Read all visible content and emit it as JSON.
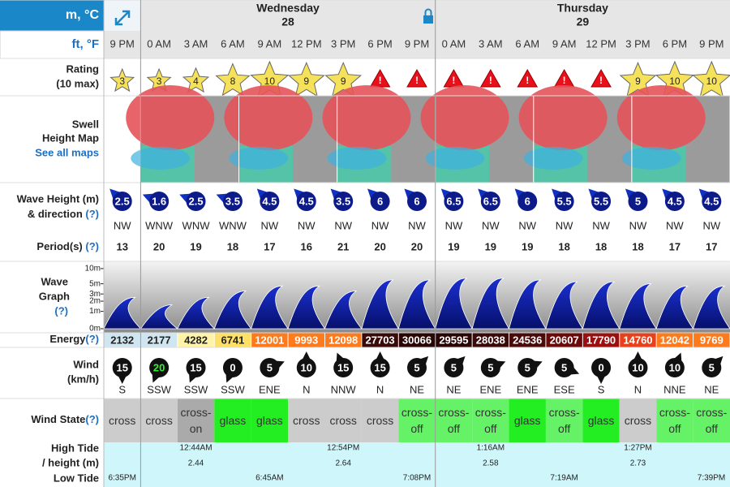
{
  "units": {
    "metric": "m, °C",
    "imperial": "ft, °F"
  },
  "days": [
    {
      "name": "Wednesday",
      "date": "28"
    },
    {
      "name": "Thursday",
      "date": "29"
    }
  ],
  "times": [
    "9 PM",
    "0 AM",
    "3 AM",
    "6 AM",
    "9 AM",
    "12 PM",
    "3 PM",
    "6 PM",
    "9 PM",
    "0 AM",
    "3 AM",
    "6 AM",
    "9 AM",
    "12 PM",
    "3 PM",
    "6 PM",
    "9 PM"
  ],
  "labels": {
    "rating": "Rating",
    "rating_note": "(10 max)",
    "swell_1": "Swell",
    "swell_2": "Height Map",
    "see_all": "See all maps",
    "wave_height": "Wave Height (m)",
    "direction": "& direction",
    "help": "(?)",
    "period": "Period(s)",
    "wave_1": "Wave",
    "wave_2": "Graph",
    "energy": "Energy",
    "wind": "Wind",
    "wind_unit": "(km/h)",
    "wind_state": "Wind State",
    "high_tide": "High Tide",
    "tide_height": "/ height (m)",
    "low_tide": "Low Tide"
  },
  "rating": [
    3,
    3,
    4,
    8,
    10,
    9,
    9,
    "!",
    "!",
    "!",
    "!",
    "!",
    "!",
    "!",
    9,
    10,
    10
  ],
  "wave_height": [
    2.5,
    1.6,
    2.5,
    3.5,
    4.5,
    4.5,
    3.5,
    6,
    6,
    6.5,
    6.5,
    6,
    5.5,
    5.5,
    5,
    4.5,
    4.5
  ],
  "wave_direction": [
    "NW",
    "WNW",
    "WNW",
    "WNW",
    "NW",
    "NW",
    "NW",
    "NW",
    "NW",
    "NW",
    "NW",
    "NW",
    "NW",
    "NW",
    "NW",
    "NW",
    "NW"
  ],
  "period": [
    13,
    20,
    19,
    18,
    17,
    16,
    21,
    20,
    20,
    19,
    19,
    19,
    18,
    18,
    18,
    17,
    17
  ],
  "wave_graph_axis": [
    {
      "value": 10,
      "label": "10m"
    },
    {
      "value": 5,
      "label": "5m"
    },
    {
      "value": 3,
      "label": "3m"
    },
    {
      "value": 2,
      "label": "2m"
    },
    {
      "value": 1,
      "label": "1m"
    },
    {
      "value": 0,
      "label": "0m"
    }
  ],
  "energy": [
    2132,
    2177,
    4282,
    6741,
    12001,
    9993,
    12098,
    27703,
    30066,
    29595,
    28038,
    24536,
    20607,
    17790,
    14760,
    12042,
    9769
  ],
  "energy_colors": [
    "#cfe6f0",
    "#cfe6f0",
    "#fff3a8",
    "#ffe066",
    "#ff7a1a",
    "#ff7a1a",
    "#ff7a1a",
    "#3a0a0a",
    "#2a0505",
    "#2a0505",
    "#3a0a0a",
    "#4a0a0a",
    "#6a0a0a",
    "#9a1010",
    "#e8401a",
    "#ff7a1a",
    "#ff7a1a"
  ],
  "wind_speed": [
    15,
    20,
    15,
    0,
    5,
    10,
    15,
    15,
    5,
    5,
    5,
    5,
    5,
    0,
    10,
    10,
    5
  ],
  "wind_direction": [
    "S",
    "SSW",
    "SSW",
    "SSW",
    "ENE",
    "N",
    "NNW",
    "N",
    "NE",
    "NE",
    "ENE",
    "ENE",
    "ESE",
    "S",
    "N",
    "NNE",
    "NE"
  ],
  "wind_state": [
    "cross",
    "cross",
    "cross-on",
    "glass",
    "glass",
    "cross",
    "cross",
    "cross",
    "cross-off",
    "cross-off",
    "cross-off",
    "glass",
    "cross-off",
    "glass",
    "cross",
    "cross-off",
    "cross-off"
  ],
  "wind_state_colors": {
    "cross": "#cccccc",
    "cross-on": "#aaaaaa",
    "glass": "#22ee22",
    "cross-off": "#66f266"
  },
  "high_tides": [
    {
      "time": "12:44AM",
      "height": "2.44"
    },
    {
      "time": "12:54PM",
      "height": "2.64"
    },
    {
      "time": "1:16AM",
      "height": "2.58"
    },
    {
      "time": "1:27PM",
      "height": "2.73"
    }
  ],
  "low_tides": [
    "6:35PM",
    "6:45AM",
    "7:08PM",
    "7:19AM",
    "7:39PM"
  ]
}
